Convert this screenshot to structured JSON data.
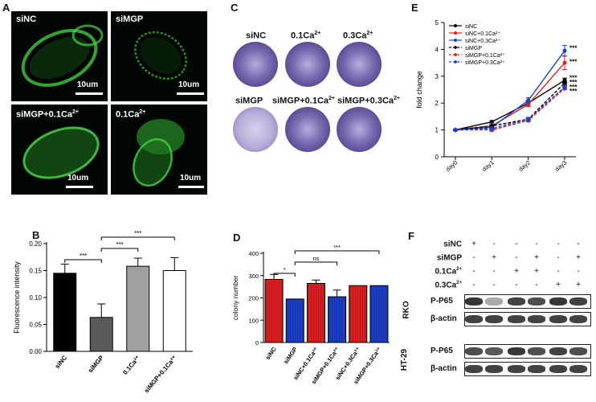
{
  "panels": {
    "A": {
      "letter": "A",
      "images": [
        {
          "label": "siNC",
          "sup": "",
          "scale": "10um"
        },
        {
          "label": "siMGP",
          "sup": "",
          "scale": "10um"
        },
        {
          "label": "siMGP+0.1Ca",
          "sup": "2+",
          "scale": "10um"
        },
        {
          "label": "0.1Ca",
          "sup": "2+",
          "scale": "10um"
        }
      ]
    },
    "C": {
      "letter": "C",
      "labels": [
        {
          "text": "siNC",
          "sup": ""
        },
        {
          "text": "0.1Ca",
          "sup": "2+"
        },
        {
          "text": "0.3Ca",
          "sup": "2+"
        },
        {
          "text": "siMGP",
          "sup": ""
        },
        {
          "text": "siMGP+0.1Ca",
          "sup": "2+"
        },
        {
          "text": "siMGP+0.3Ca",
          "sup": "2+"
        }
      ],
      "colors": {
        "dish": "#7a68b0",
        "dish_dark": "#3c2f78",
        "dish_light": "#b8acd8"
      }
    },
    "F": {
      "letter": "F",
      "rows": [
        {
          "label": "siNC",
          "sup": "",
          "marks": [
            "+",
            "-",
            "-",
            "-",
            "-",
            "-"
          ]
        },
        {
          "label": "siMGP",
          "sup": "",
          "marks": [
            "-",
            "+",
            "-",
            "+",
            "-",
            "+"
          ]
        },
        {
          "label": "0.1Ca",
          "sup": "2+",
          "marks": [
            "-",
            "-",
            "+",
            "+",
            "-",
            "-"
          ]
        },
        {
          "label": "0.3Ca",
          "sup": "2+",
          "marks": [
            "-",
            "-",
            "-",
            "-",
            "+",
            "+"
          ]
        }
      ],
      "blots": [
        {
          "cell_line": "RKO",
          "proteins": [
            "P-P65",
            "β-actin"
          ]
        },
        {
          "cell_line": "HT-29",
          "proteins": [
            "P-P65",
            "β-actin"
          ]
        }
      ]
    }
  },
  "chart_data": [
    {
      "panel": "E",
      "type": "line",
      "ylabel": "fold change",
      "x": [
        "day0",
        "day1",
        "day2",
        "day3"
      ],
      "ylim": [
        0,
        5
      ],
      "yticks": [
        0,
        1,
        2,
        3,
        4,
        5
      ],
      "series": [
        {
          "name": "siNC",
          "color": "#000000",
          "dashed": false,
          "marker": "circle",
          "values": [
            1.0,
            1.3,
            2.0,
            2.85
          ],
          "errors": [
            0.03,
            0.05,
            0.08,
            0.08
          ]
        },
        {
          "name": "siNC+0.1Ca²⁺",
          "color": "#e02020",
          "dashed": false,
          "marker": "circle",
          "values": [
            1.0,
            1.15,
            1.95,
            3.5
          ],
          "errors": [
            0.03,
            0.1,
            0.08,
            0.25
          ]
        },
        {
          "name": "siNC+0.3Ca²⁺",
          "color": "#1b3fc8",
          "dashed": false,
          "marker": "circle",
          "values": [
            1.0,
            1.1,
            2.1,
            3.95
          ],
          "errors": [
            0.03,
            0.1,
            0.1,
            0.2
          ]
        },
        {
          "name": "siMGP",
          "color": "#000000",
          "dashed": true,
          "marker": "diamond",
          "values": [
            1.0,
            1.15,
            1.4,
            2.75
          ],
          "errors": [
            0.03,
            0.05,
            0.06,
            0.06
          ]
        },
        {
          "name": "siMGP+0.1Ca²⁺",
          "color": "#e02020",
          "dashed": true,
          "marker": "diamond",
          "values": [
            1.0,
            1.0,
            1.35,
            2.55
          ],
          "errors": [
            0.03,
            0.05,
            0.05,
            0.06
          ]
        },
        {
          "name": "siMGP+0.3Ca²⁺",
          "color": "#1b3fc8",
          "dashed": true,
          "marker": "diamond",
          "values": [
            1.0,
            1.05,
            1.4,
            2.6
          ],
          "errors": [
            0.03,
            0.05,
            0.05,
            0.06
          ]
        }
      ],
      "annotations": [
        "***",
        "***",
        "***",
        "***",
        "***",
        "***"
      ]
    },
    {
      "panel": "B",
      "type": "bar",
      "ylabel": "Fluorescence intensity",
      "categories": [
        "siNC",
        "siMGP",
        "0.1Ca²⁺",
        "siMGP+0.1Ca²⁺"
      ],
      "values": [
        0.145,
        0.063,
        0.158,
        0.15
      ],
      "errors": [
        0.017,
        0.025,
        0.015,
        0.024
      ],
      "colors": [
        "#000000",
        "#5a5a5a",
        "#a0a0a0",
        "#ffffff"
      ],
      "ylim": [
        0,
        0.2
      ],
      "yticks": [
        "0.00",
        "0.05",
        "0.10",
        "0.15",
        "0.20"
      ],
      "brackets": [
        {
          "from": 0,
          "to": 1,
          "label": "***"
        },
        {
          "from": 1,
          "to": 2,
          "label": "***"
        },
        {
          "from": 1,
          "to": 3,
          "label": "***"
        }
      ]
    },
    {
      "panel": "D",
      "type": "bar",
      "ylabel": "colony number",
      "categories": [
        "siNC",
        "siMGP",
        "siNC+0.1Ca²⁺",
        "siMGP+0.1Ca²⁺",
        "siNC+0.3Ca²⁺",
        "siMGP+0.3Ca²⁺"
      ],
      "values": [
        283,
        195,
        265,
        205,
        255,
        255
      ],
      "errors": [
        22,
        0,
        15,
        30,
        0,
        0
      ],
      "colors": [
        "#e02020",
        "#1b3fc8",
        "#e02020",
        "#1b3fc8",
        "#e02020",
        "#1b3fc8"
      ],
      "ylim": [
        0,
        400
      ],
      "yticks": [
        "0",
        "100",
        "200",
        "300",
        "400"
      ],
      "brackets": [
        {
          "from": 0,
          "to": 1,
          "label": "*"
        },
        {
          "from": 1,
          "to": 3,
          "label": "ns"
        },
        {
          "from": 1,
          "to": 5,
          "label": "***"
        }
      ]
    }
  ]
}
